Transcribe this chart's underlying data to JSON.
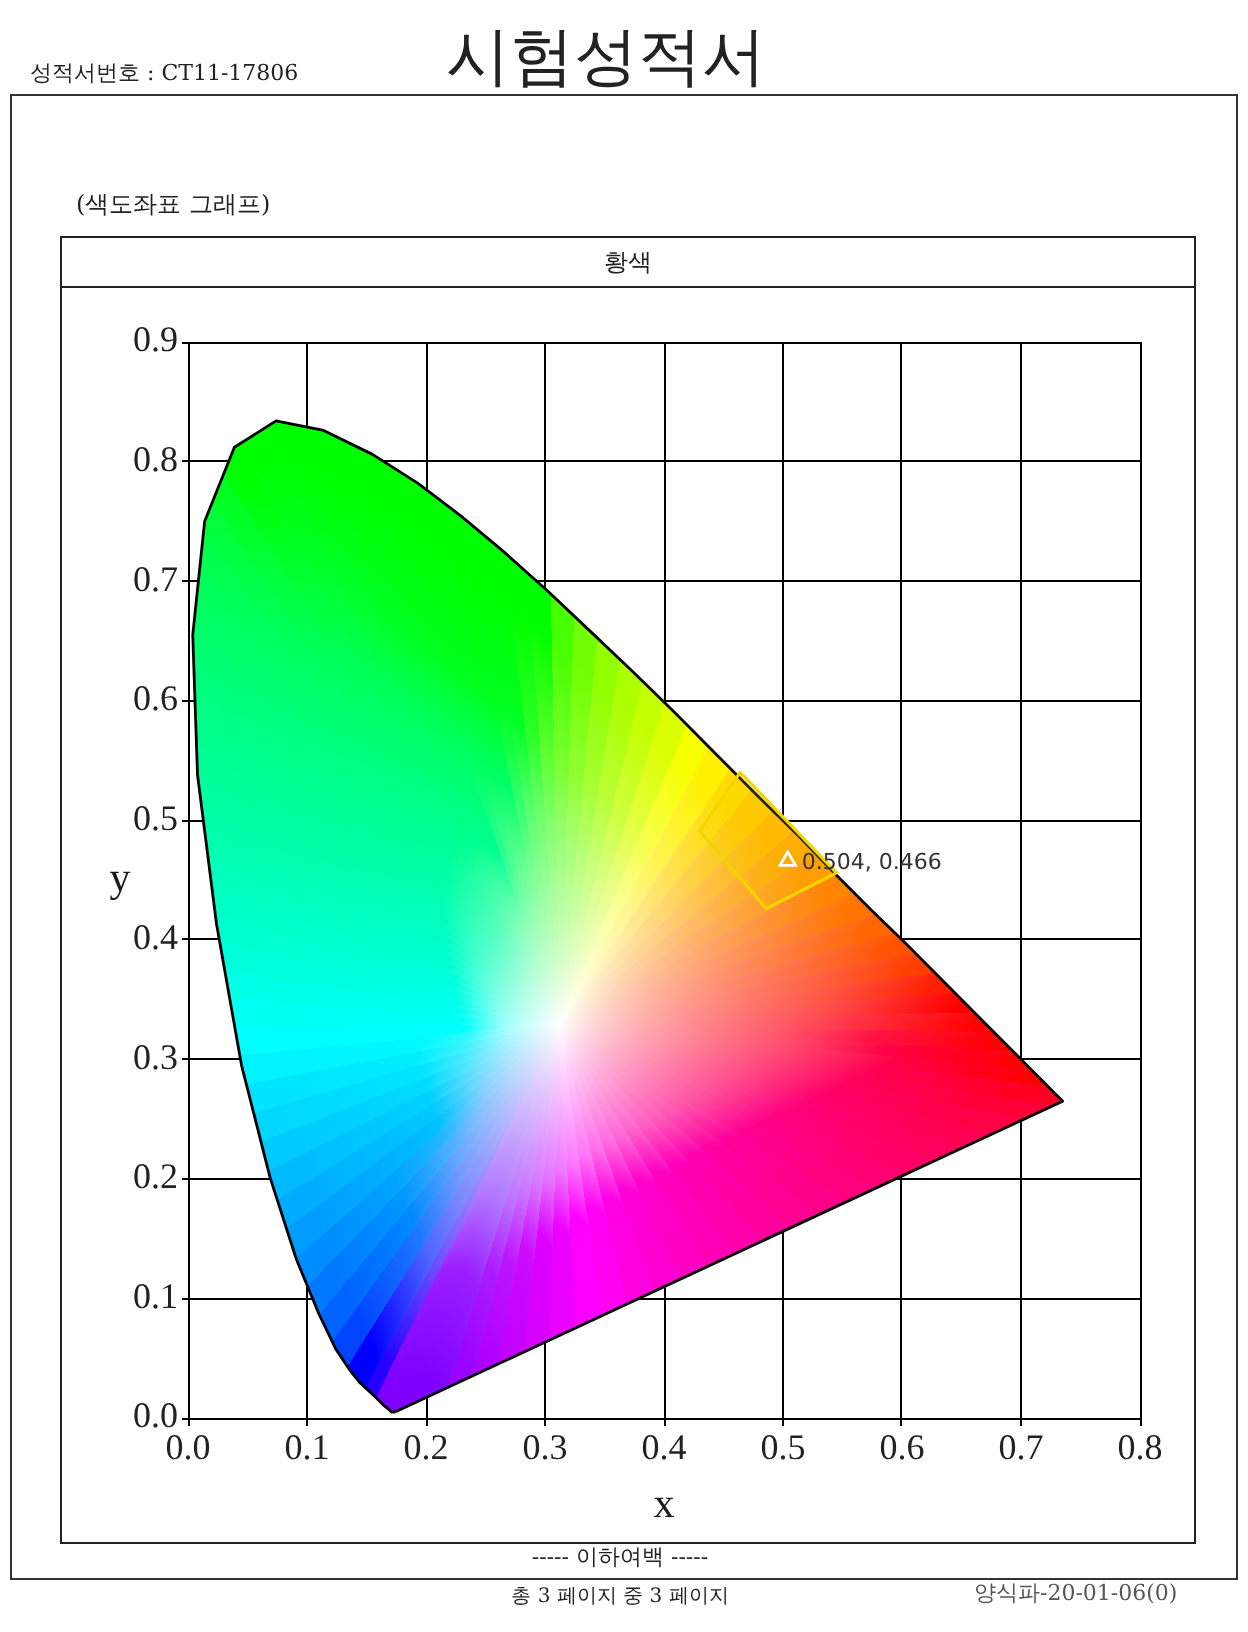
{
  "chart_data": {
    "type": "scatter",
    "title": "시험성적서",
    "subtitle": "황색",
    "xlabel": "x",
    "ylabel": "y",
    "annotations": [
      "성적서번호 : CT11-17806",
      "(색도좌표 그래프)",
      "----- 이하여백 -----",
      "총 3 페이지 중 3 페이지",
      "양식파-20-01-06(0)",
      {
        "text": "0.504, 0.466",
        "x": 0.504,
        "y": 0.466
      }
    ],
    "xlim": [
      0,
      0.8
    ],
    "ylim": [
      0,
      0.9
    ],
    "xticks": [
      {
        "value": 0,
        "label": "0.0"
      },
      0.1,
      0.2,
      0.3,
      0.4,
      0.5,
      0.6,
      0.7,
      0.8
    ],
    "yticks": [
      {
        "value": 0,
        "label": "0.0"
      },
      0.1,
      0.2,
      0.3,
      0.4,
      0.5,
      0.6,
      0.7,
      0.8,
      0.9
    ],
    "grid": true,
    "series": [
      {
        "type": "area",
        "x": [
          0.174,
          0.173,
          0.171,
          0.169,
          0.164,
          0.157,
          0.144,
          0.136,
          0.124,
          0.11,
          0.091,
          0.069,
          0.045,
          0.024,
          0.008,
          0.004,
          0.014,
          0.039,
          0.074,
          0.114,
          0.155,
          0.193,
          0.23,
          0.266,
          0.302,
          0.337,
          0.373,
          0.409,
          0.444,
          0.479,
          0.513,
          0.545,
          0.575,
          0.603,
          0.627,
          0.666,
          0.692,
          0.708,
          0.719,
          0.726,
          0.73,
          0.733,
          0.735,
          0.174
        ],
        "values": [
          0.005,
          0.005,
          0.005,
          0.007,
          0.011,
          0.018,
          0.03,
          0.04,
          0.058,
          0.087,
          0.133,
          0.201,
          0.295,
          0.413,
          0.538,
          0.655,
          0.75,
          0.812,
          0.834,
          0.826,
          0.806,
          0.782,
          0.754,
          0.724,
          0.692,
          0.659,
          0.625,
          0.59,
          0.555,
          0.52,
          0.487,
          0.454,
          0.424,
          0.397,
          0.373,
          0.334,
          0.308,
          0.292,
          0.281,
          0.274,
          0.27,
          0.267,
          0.265,
          0.005
        ]
      },
      {
        "type": "area",
        "color": "#f2d600",
        "x": [
          0.43,
          0.464,
          0.545,
          0.486,
          0.43
        ],
        "values": [
          0.491,
          0.54,
          0.456,
          0.426,
          0.491
        ]
      },
      {
        "color": "#ffffff",
        "marker": "triangle",
        "x": [
          0.504
        ],
        "values": [
          0.466
        ]
      }
    ]
  }
}
